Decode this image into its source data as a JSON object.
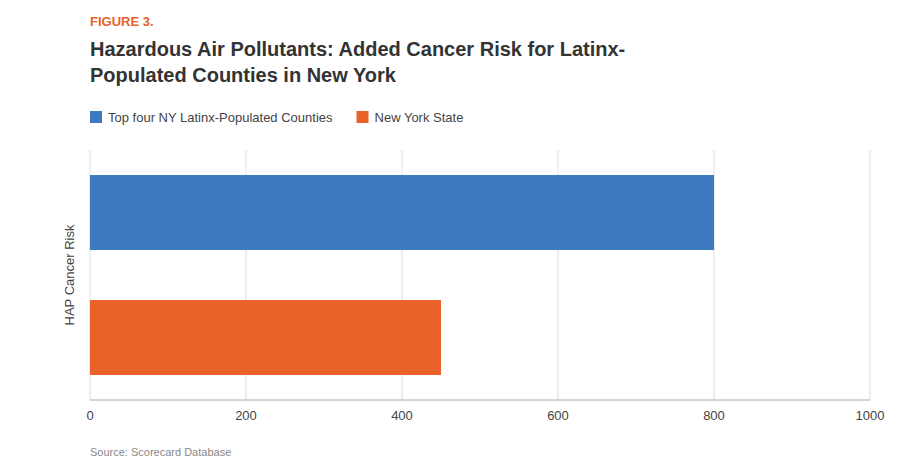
{
  "chart_data": {
    "type": "bar",
    "orientation": "horizontal",
    "title": "Hazardous Air Pollutants: Added Cancer Risk for Latinx-\nPopulated Counties in New York",
    "ylabel": "HAP Cancer Risk",
    "annotations": [
      {
        "text": "FIGURE 3.",
        "color": "#e8622a"
      },
      {
        "text": "Source: Scorecard Database"
      }
    ],
    "categories": [
      null
    ],
    "series": [
      {
        "name": "Top four NY Latinx-Populated Counties",
        "color": "#3d7abf",
        "values": [
          800
        ]
      },
      {
        "name": "New York State",
        "color": "#e8622a",
        "values": [
          450
        ]
      }
    ],
    "xlim": [
      0,
      1000
    ],
    "xticks": [
      0,
      200,
      400,
      600,
      800,
      1000
    ],
    "grid": true,
    "legend": "top",
    "tick_labels": "x"
  }
}
